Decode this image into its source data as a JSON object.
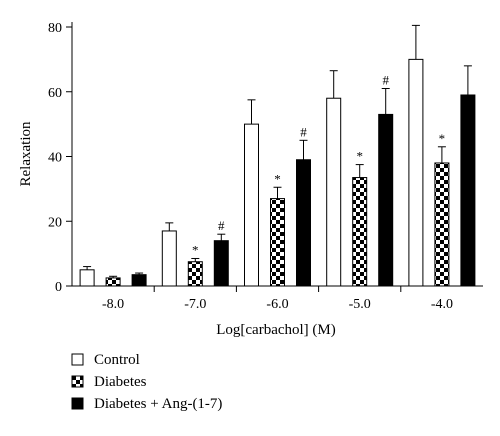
{
  "chart_data": {
    "type": "bar",
    "xlabel": "Log[carbachol] (M)",
    "ylabel": "Relaxation",
    "ylim": [
      0,
      80
    ],
    "yticks": [
      0,
      20,
      40,
      60,
      80
    ],
    "categories": [
      "-8.0",
      "-7.0",
      "-6.0",
      "-5.0",
      "-4.0"
    ],
    "series": [
      {
        "name": "Control",
        "fill": "white",
        "values": [
          5,
          17,
          50,
          58,
          70
        ],
        "errors": [
          1,
          2.5,
          7.5,
          8.5,
          10.5
        ],
        "markers": [
          "",
          "",
          "",
          "",
          ""
        ]
      },
      {
        "name": "Diabetes",
        "fill": "checker",
        "values": [
          2.5,
          7.5,
          27,
          33.5,
          38
        ],
        "errors": [
          0.5,
          1,
          3.5,
          4,
          5
        ],
        "markers": [
          "",
          "*",
          "*",
          "*",
          "*"
        ]
      },
      {
        "name": "Diabetes + Ang-(1-7)",
        "fill": "black",
        "values": [
          3.5,
          14,
          39,
          53,
          59
        ],
        "errors": [
          0.5,
          2,
          6,
          8,
          9
        ],
        "markers": [
          "",
          "#",
          "#",
          "#",
          ""
        ]
      }
    ],
    "legend_position": "bottom-left",
    "grid": false
  },
  "colors": {
    "axis": "#000000",
    "bar_outline": "#000000",
    "solid_fill": "#000000",
    "open_fill": "#ffffff"
  }
}
